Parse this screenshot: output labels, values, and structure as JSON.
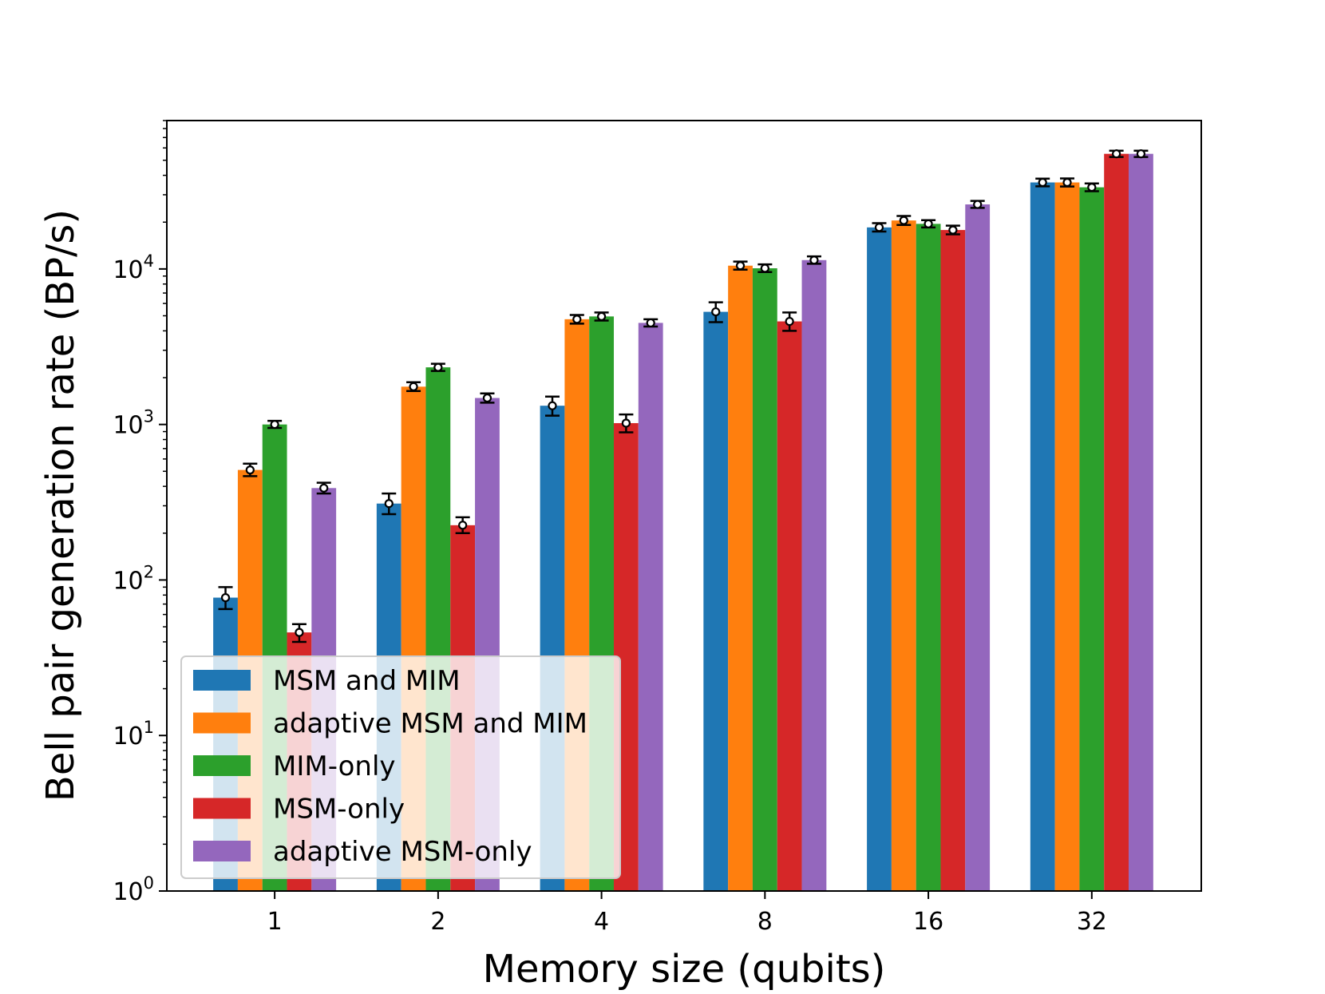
{
  "chart_data": {
    "type": "bar",
    "xlabel": "Memory size (qubits)",
    "ylabel": "Bell pair generation rate (BP/s)",
    "yscale": "log",
    "ylim": [
      1,
      90000
    ],
    "categories": [
      "1",
      "2",
      "4",
      "8",
      "16",
      "32"
    ],
    "ytick_values": [
      1,
      10,
      100,
      1000,
      10000
    ],
    "ytick_labels": [
      {
        "base": "10",
        "exp": "0"
      },
      {
        "base": "10",
        "exp": "1"
      },
      {
        "base": "10",
        "exp": "2"
      },
      {
        "base": "10",
        "exp": "3"
      },
      {
        "base": "10",
        "exp": "4"
      }
    ],
    "legend_position": "lower-left",
    "series": [
      {
        "name": "MSM and MIM",
        "color": "#1f77b4",
        "values": [
          77,
          310,
          1320,
          5300,
          18500,
          36000
        ],
        "err_low": [
          12,
          45,
          180,
          750,
          1100,
          2000
        ],
        "err_high": [
          13,
          50,
          190,
          800,
          1200,
          2100
        ]
      },
      {
        "name": "adaptive MSM and MIM",
        "color": "#ff7f0e",
        "values": [
          510,
          1750,
          4750,
          10500,
          20500,
          36000
        ],
        "err_low": [
          45,
          110,
          300,
          600,
          1300,
          2100
        ],
        "err_high": [
          50,
          120,
          310,
          650,
          1400,
          2200
        ]
      },
      {
        "name": "MIM-only",
        "color": "#2ca02c",
        "values": [
          1000,
          2330,
          4950,
          10100,
          19500,
          33500
        ],
        "err_low": [
          50,
          120,
          290,
          550,
          1000,
          1900
        ],
        "err_high": [
          55,
          125,
          300,
          600,
          1100,
          2000
        ]
      },
      {
        "name": "MSM-only",
        "color": "#d62728",
        "values": [
          46,
          225,
          1020,
          4600,
          17800,
          55000
        ],
        "err_low": [
          6,
          25,
          130,
          600,
          1100,
          2500
        ],
        "err_high": [
          6,
          28,
          140,
          650,
          1200,
          2600
        ]
      },
      {
        "name": "adaptive MSM-only",
        "color": "#9467bd",
        "values": [
          390,
          1480,
          4500,
          11400,
          26000,
          55000
        ],
        "err_low": [
          30,
          100,
          240,
          600,
          1300,
          2500
        ],
        "err_high": [
          32,
          105,
          250,
          650,
          1400,
          2600
        ]
      }
    ]
  }
}
